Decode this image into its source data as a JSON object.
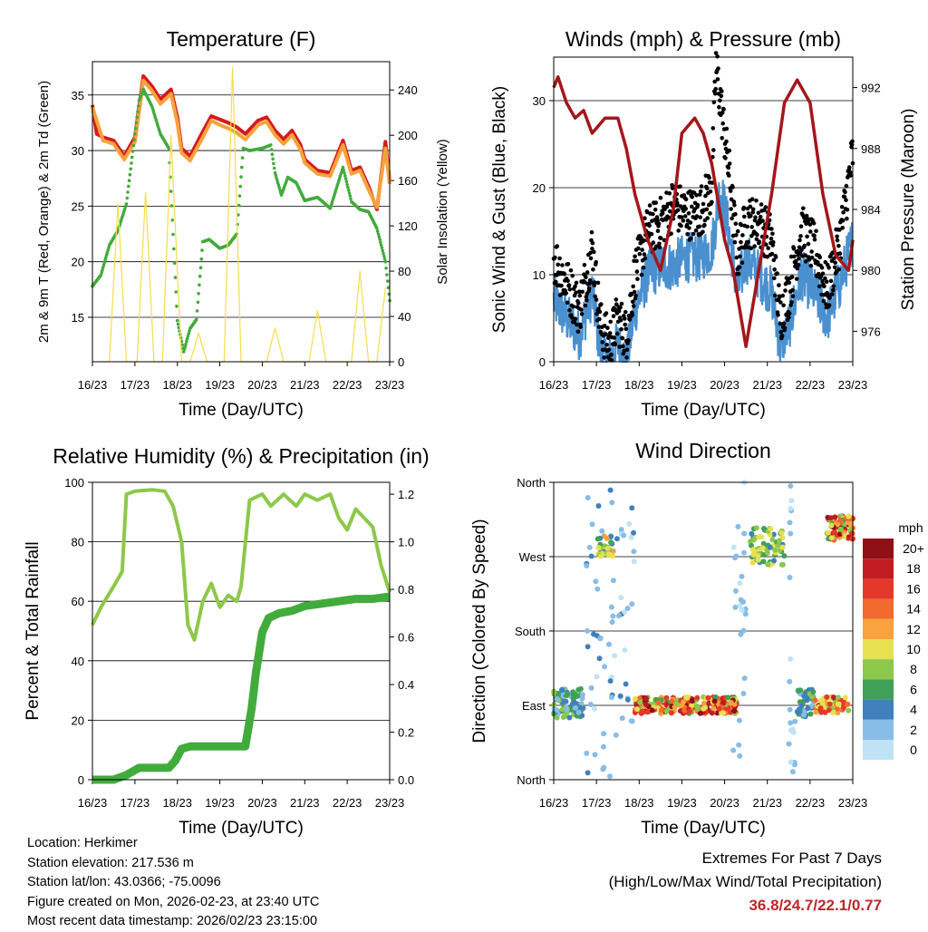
{
  "chart_data": [
    {
      "type": "line",
      "title": "Temperature (F)",
      "xlabel": "Time (Day/UTC)",
      "ylabel": "2m & 9m T (Red, Orange) & 2m Td (Green)",
      "y2label": "Solar Insolation (Yellow)",
      "categories": [
        "16/23",
        "17/23",
        "18/23",
        "19/23",
        "20/23",
        "21/23",
        "22/23",
        "23/23"
      ],
      "ylim": [
        11,
        38
      ],
      "y2lim": [
        0,
        265
      ],
      "yticks": [
        15,
        20,
        25,
        30,
        35
      ],
      "y2ticks": [
        0,
        40,
        80,
        120,
        160,
        200,
        240
      ],
      "series": [
        {
          "name": "2m T",
          "color": "#d7191c",
          "x": [
            0,
            0.1,
            0.25,
            0.5,
            0.75,
            1.0,
            1.2,
            1.4,
            1.6,
            1.85,
            2.0,
            2.1,
            2.3,
            2.6,
            2.8,
            3.0,
            3.2,
            3.4,
            3.6,
            3.9,
            4.1,
            4.3,
            4.5,
            4.7,
            4.9,
            5.0,
            5.3,
            5.6,
            5.9,
            6.1,
            6.3,
            6.5,
            6.7,
            6.9,
            7.0
          ],
          "values": [
            34.1,
            31.5,
            31.2,
            30.9,
            29.5,
            31.2,
            36.7,
            35.8,
            34.6,
            35.5,
            33.0,
            30.2,
            29.5,
            31.7,
            33.1,
            32.8,
            32.5,
            32.1,
            31.5,
            32.7,
            33.0,
            31.8,
            31.0,
            31.8,
            30.5,
            29.2,
            28.2,
            28.0,
            30.9,
            28.2,
            28.5,
            26.8,
            24.7,
            30.8,
            27.2
          ]
        },
        {
          "name": "9m T",
          "color": "#f6a23c",
          "x": [
            0,
            0.25,
            0.5,
            0.75,
            1.0,
            1.2,
            1.4,
            1.6,
            1.85,
            2.0,
            2.1,
            2.3,
            2.6,
            2.8,
            3.0,
            3.2,
            3.4,
            3.6,
            3.9,
            4.1,
            4.3,
            4.5,
            4.7,
            4.9,
            5.0,
            5.3,
            5.6,
            5.9,
            6.1,
            6.3,
            6.5,
            6.7,
            6.9,
            7.0
          ],
          "values": [
            33.9,
            30.9,
            30.6,
            29.2,
            30.8,
            36.3,
            35.4,
            34.2,
            35.1,
            32.5,
            29.8,
            29.1,
            31.2,
            32.7,
            32.3,
            32.0,
            31.6,
            31.0,
            32.3,
            32.6,
            31.4,
            30.6,
            31.4,
            30.1,
            28.9,
            27.9,
            27.7,
            30.5,
            27.9,
            28.2,
            26.5,
            24.9,
            30.2,
            27.0
          ]
        },
        {
          "name": "2m Td",
          "color": "#41ab3c",
          "x": [
            0,
            0.2,
            0.4,
            0.6,
            0.8,
            1.0,
            1.1,
            1.2,
            1.4,
            1.6,
            1.8,
            2.0,
            2.15,
            2.3,
            2.45,
            2.6,
            2.75,
            3.0,
            3.2,
            3.4,
            3.55,
            3.7,
            4.0,
            4.2,
            4.3,
            4.45,
            4.6,
            4.8,
            5.0,
            5.3,
            5.6,
            5.9,
            6.1,
            6.3,
            6.5,
            6.7,
            6.9,
            7.0
          ],
          "values": [
            17.8,
            18.8,
            21.5,
            22.8,
            25.2,
            31.5,
            34.5,
            35.5,
            34.0,
            31.5,
            30.2,
            14.7,
            11.9,
            14.0,
            14.8,
            21.8,
            22.0,
            21.2,
            21.5,
            22.5,
            30.2,
            30.0,
            30.2,
            30.5,
            28.0,
            26.0,
            27.6,
            27.1,
            25.5,
            25.8,
            24.8,
            28.5,
            25.4,
            24.7,
            24.5,
            23.0,
            20.0,
            16.5
          ]
        },
        {
          "name": "Solar Insolation",
          "color": "#f7dc4a",
          "axis": "y2",
          "x": [
            0.2,
            0.4,
            0.6,
            0.8,
            1.05,
            1.25,
            1.45,
            1.65,
            1.85,
            2.1,
            2.3,
            2.5,
            2.7,
            3.1,
            3.3,
            3.5,
            3.7,
            4.1,
            4.3,
            4.5,
            4.7,
            5.1,
            5.3,
            5.5,
            5.7,
            6.1,
            6.3,
            6.5,
            6.7,
            6.9
          ],
          "values": [
            0,
            0,
            140,
            0,
            0,
            150,
            0,
            0,
            200,
            0,
            0,
            25,
            0,
            0,
            260,
            0,
            0,
            0,
            30,
            0,
            0,
            0,
            45,
            0,
            0,
            0,
            80,
            0,
            0,
            65
          ]
        }
      ]
    },
    {
      "type": "line",
      "title": "Winds (mph) & Pressure (mb)",
      "xlabel": "Time (Day/UTC)",
      "ylabel": "Sonic Wind & Gust (Blue, Black)",
      "y2label": "Station Pressure (Maroon)",
      "categories": [
        "16/23",
        "17/23",
        "18/23",
        "19/23",
        "20/23",
        "21/23",
        "22/23",
        "23/23"
      ],
      "ylim": [
        0,
        35
      ],
      "y2lim": [
        974,
        994
      ],
      "yticks": [
        0,
        10,
        20,
        30
      ],
      "y2ticks": [
        976,
        980,
        984,
        988,
        992
      ],
      "series": [
        {
          "name": "Sonic Wind",
          "color": "#4a90cf",
          "x": [
            0,
            0.3,
            0.6,
            0.9,
            1.1,
            1.3,
            1.5,
            1.7,
            1.9,
            2.2,
            2.5,
            2.8,
            3.1,
            3.4,
            3.7,
            3.9,
            4.1,
            4.3,
            4.5,
            4.8,
            5.1,
            5.3,
            5.5,
            5.8,
            6.1,
            6.4,
            6.7,
            7.0
          ],
          "values": [
            7,
            5,
            3,
            8,
            1,
            0,
            2,
            0,
            6,
            10,
            11,
            11,
            12,
            12,
            13,
            20,
            15,
            8,
            12,
            10,
            8,
            2,
            4,
            10,
            8,
            5,
            9,
            14
          ]
        },
        {
          "name": "Gust",
          "color": "#000000",
          "x": [
            0,
            0.3,
            0.6,
            0.9,
            1.1,
            1.3,
            1.5,
            1.7,
            1.9,
            2.2,
            2.5,
            2.8,
            3.1,
            3.4,
            3.7,
            3.8,
            3.9,
            4.1,
            4.3,
            4.5,
            4.8,
            5.1,
            5.3,
            5.5,
            5.8,
            6.1,
            6.4,
            6.7,
            7.0
          ],
          "values": [
            12,
            9,
            6,
            13,
            4,
            2,
            5,
            3,
            10,
            15,
            16,
            18,
            17,
            17,
            20,
            34,
            30,
            22,
            12,
            16,
            16,
            14,
            5,
            8,
            15,
            13,
            8,
            14,
            24
          ]
        },
        {
          "name": "Station Pressure",
          "color": "#a3161b",
          "axis": "y2",
          "x": [
            0,
            0.1,
            0.3,
            0.5,
            0.7,
            0.9,
            1.2,
            1.5,
            1.7,
            1.9,
            2.2,
            2.5,
            2.8,
            3.0,
            3.3,
            3.5,
            3.7,
            4.0,
            4.2,
            4.5,
            4.8,
            5.1,
            5.4,
            5.7,
            6.0,
            6.3,
            6.6,
            6.9,
            7.0
          ],
          "values": [
            992,
            992.7,
            991,
            990,
            990.5,
            989,
            990,
            990,
            988,
            985,
            982,
            980,
            984,
            989,
            990,
            989,
            987,
            982,
            980,
            975,
            980,
            985,
            991,
            992.5,
            991,
            985,
            981,
            980,
            982
          ]
        }
      ]
    },
    {
      "type": "line",
      "title": "Relative Humidity (%) & Precipitation (in)",
      "xlabel": "Time (Day/UTC)",
      "ylabel": "Percent & Total Rainfall",
      "categories": [
        "16/23",
        "17/23",
        "18/23",
        "19/23",
        "20/23",
        "21/23",
        "22/23",
        "23/23"
      ],
      "ylim": [
        0,
        100
      ],
      "y2lim": [
        0,
        1.25
      ],
      "yticks": [
        0,
        20,
        40,
        60,
        80,
        100
      ],
      "y2ticks": [
        0.0,
        0.2,
        0.4,
        0.6,
        0.8,
        1.0,
        1.2
      ],
      "series": [
        {
          "name": "Relative Humidity",
          "color": "#8cc84a",
          "x": [
            0,
            0.2,
            0.5,
            0.7,
            0.8,
            1.0,
            1.4,
            1.7,
            1.9,
            2.1,
            2.25,
            2.4,
            2.6,
            2.8,
            3.0,
            3.2,
            3.4,
            3.5,
            3.7,
            4.0,
            4.2,
            4.5,
            4.8,
            5.0,
            5.3,
            5.6,
            5.8,
            6.0,
            6.2,
            6.4,
            6.6,
            6.8,
            7.0
          ],
          "values": [
            52,
            58,
            65,
            70,
            96,
            97,
            97.5,
            97,
            92,
            80,
            52,
            47,
            60,
            66,
            58,
            62,
            60,
            65,
            94,
            96,
            92,
            96,
            92,
            96,
            94,
            96,
            88,
            84,
            91,
            88,
            85,
            72,
            63
          ]
        },
        {
          "name": "Total Precipitation",
          "color": "#41ab3c",
          "axis": "y2",
          "x": [
            0,
            0.2,
            0.5,
            0.8,
            1.0,
            1.1,
            1.3,
            1.6,
            1.8,
            1.95,
            2.1,
            2.3,
            2.6,
            3.0,
            3.4,
            3.6,
            3.75,
            3.85,
            4.0,
            4.15,
            4.4,
            4.7,
            5.0,
            5.4,
            5.8,
            6.2,
            6.6,
            7.0
          ],
          "values": [
            0.0,
            0.0,
            0.0,
            0.02,
            0.04,
            0.05,
            0.05,
            0.05,
            0.05,
            0.08,
            0.13,
            0.14,
            0.14,
            0.14,
            0.14,
            0.14,
            0.3,
            0.45,
            0.62,
            0.68,
            0.7,
            0.71,
            0.73,
            0.74,
            0.75,
            0.76,
            0.76,
            0.77
          ]
        }
      ]
    },
    {
      "type": "scatter",
      "title": "Wind Direction",
      "xlabel": "Time (Day/UTC)",
      "ylabel": "Direction (Colored By Speed)",
      "categories": [
        "16/23",
        "17/23",
        "18/23",
        "19/23",
        "20/23",
        "21/23",
        "22/23",
        "23/23"
      ],
      "yticks": [
        "North",
        "East",
        "South",
        "West",
        "North"
      ],
      "ylim": [
        0,
        360
      ],
      "legend_title": "mph",
      "legend_labels": [
        "20+",
        "18",
        "16",
        "14",
        "12",
        "10",
        "8",
        "6",
        "4",
        "2",
        "0"
      ],
      "legend_colors": [
        "#8f1017",
        "#c01c22",
        "#e5382a",
        "#f26a2e",
        "#f9a23e",
        "#e7e04f",
        "#8cc84a",
        "#41a058",
        "#4080bd",
        "#87bde6",
        "#bfe3f5"
      ],
      "clusters": [
        {
          "x0": 0.0,
          "x1": 0.7,
          "dir_min": 75,
          "dir_max": 110,
          "speed_min": 2,
          "speed_max": 8,
          "n": 90
        },
        {
          "x0": 0.75,
          "x1": 1.9,
          "dir_min": 0,
          "dir_max": 360,
          "speed_min": 0,
          "speed_max": 4,
          "n": 70
        },
        {
          "x0": 1.0,
          "x1": 1.4,
          "dir_min": 270,
          "dir_max": 295,
          "speed_min": 4,
          "speed_max": 12,
          "n": 30
        },
        {
          "x0": 1.9,
          "x1": 4.3,
          "dir_min": 80,
          "dir_max": 100,
          "speed_min": 6,
          "speed_max": 20,
          "n": 260
        },
        {
          "x0": 4.2,
          "x1": 4.5,
          "dir_min": 0,
          "dir_max": 360,
          "speed_min": 0,
          "speed_max": 3,
          "n": 25
        },
        {
          "x0": 4.6,
          "x1": 5.4,
          "dir_min": 260,
          "dir_max": 305,
          "speed_min": 4,
          "speed_max": 11,
          "n": 70
        },
        {
          "x0": 5.5,
          "x1": 5.65,
          "dir_min": 0,
          "dir_max": 360,
          "speed_min": 0,
          "speed_max": 3,
          "n": 20
        },
        {
          "x0": 5.7,
          "x1": 6.1,
          "dir_min": 75,
          "dir_max": 110,
          "speed_min": 2,
          "speed_max": 8,
          "n": 50
        },
        {
          "x0": 6.1,
          "x1": 6.9,
          "dir_min": 80,
          "dir_max": 100,
          "speed_min": 8,
          "speed_max": 18,
          "n": 60
        },
        {
          "x0": 6.4,
          "x1": 7.0,
          "dir_min": 290,
          "dir_max": 320,
          "speed_min": 6,
          "speed_max": 20,
          "n": 80
        }
      ]
    }
  ],
  "station": {
    "location": "Location: Herkimer",
    "elevation": "Station elevation: 217.536 m",
    "latlon": "Station lat/lon: 43.0366; -75.0096",
    "created": "Figure created on Mon, 2026-02-23, at 23:40 UTC",
    "latest": "Most recent data timestamp: 2026/02/23 23:15:00"
  },
  "extremes": {
    "title": "Extremes For Past 7 Days",
    "subtitle": "(High/Low/Max Wind/Total Precipitation)",
    "value": "36.8/24.7/22.1/0.77"
  }
}
